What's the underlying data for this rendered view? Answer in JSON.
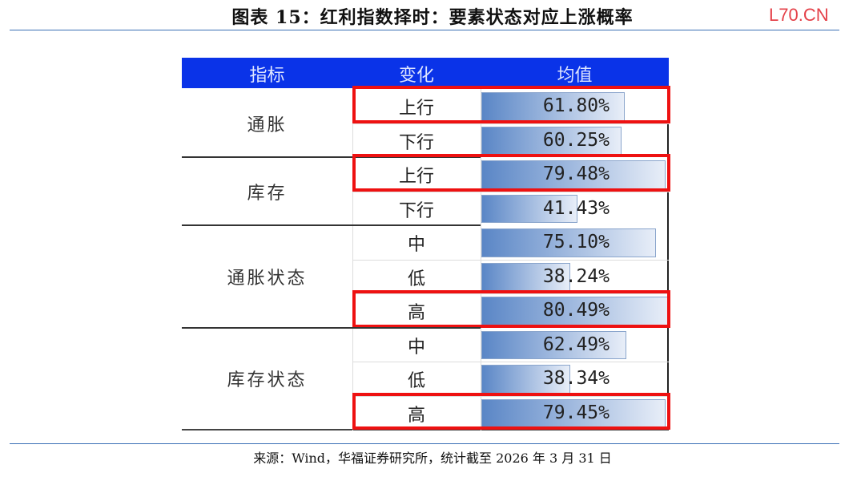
{
  "title": "图表 15：红利指数择时：要素状态对应上涨概率",
  "watermark": "L70.CN",
  "table": {
    "headers": [
      "指标",
      "变化",
      "均值"
    ],
    "groups": [
      {
        "name": "通胀",
        "rows": [
          {
            "change": "上行",
            "value": "61.80%",
            "pct": 61.8,
            "highlight": true
          },
          {
            "change": "下行",
            "value": "60.25%",
            "pct": 60.25,
            "highlight": false
          }
        ]
      },
      {
        "name": "库存",
        "rows": [
          {
            "change": "上行",
            "value": "79.48%",
            "pct": 79.48,
            "highlight": true
          },
          {
            "change": "下行",
            "value": "41.43%",
            "pct": 41.43,
            "highlight": false
          }
        ]
      },
      {
        "name": "通胀状态",
        "rows": [
          {
            "change": "中",
            "value": "75.10%",
            "pct": 75.1,
            "highlight": false
          },
          {
            "change": "低",
            "value": "38.24%",
            "pct": 38.24,
            "highlight": false
          },
          {
            "change": "高",
            "value": "80.49%",
            "pct": 80.49,
            "highlight": true
          }
        ]
      },
      {
        "name": "库存状态",
        "rows": [
          {
            "change": "中",
            "value": "62.49%",
            "pct": 62.49,
            "highlight": false
          },
          {
            "change": "低",
            "value": "38.34%",
            "pct": 38.34,
            "highlight": false
          },
          {
            "change": "高",
            "value": "79.45%",
            "pct": 79.45,
            "highlight": true
          }
        ]
      }
    ],
    "highlight_color": "#ee1111",
    "header_color": "#0a33e8"
  },
  "source": "来源：Wind，华福证券研究所，统计截至 2026 年 3 月 31 日"
}
